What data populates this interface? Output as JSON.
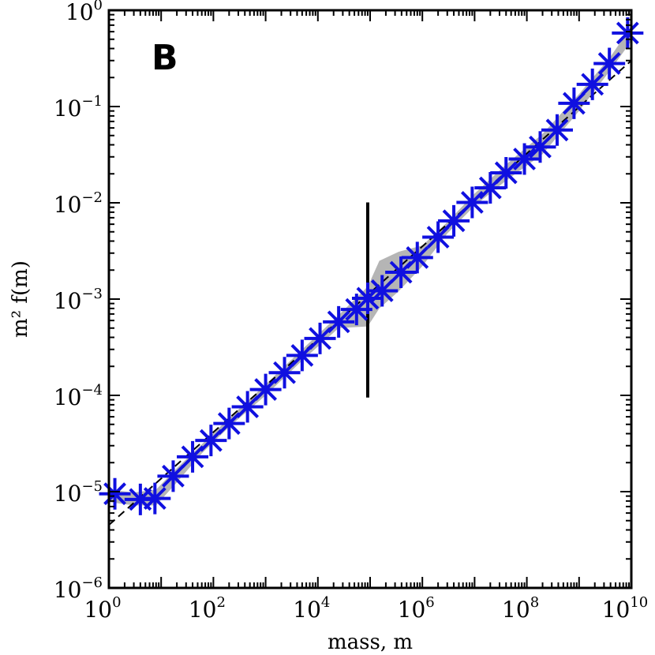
{
  "chart_data": {
    "type": "scatter",
    "panel_label": "B",
    "xlabel": "mass, m",
    "ylabel": "m² f(m)",
    "xscale": "log",
    "yscale": "log",
    "xlim": [
      1,
      10000000000
    ],
    "ylim": [
      1e-06,
      1
    ],
    "x_ticks": [
      {
        "base": "10",
        "exp": "0",
        "value": 1
      },
      {
        "base": "10",
        "exp": "2",
        "value": 100
      },
      {
        "base": "10",
        "exp": "4",
        "value": 10000
      },
      {
        "base": "10",
        "exp": "6",
        "value": 1000000
      },
      {
        "base": "10",
        "exp": "8",
        "value": 100000000
      },
      {
        "base": "10",
        "exp": "10",
        "value": 10000000000
      }
    ],
    "y_ticks": [
      {
        "base": "10",
        "exp": "−6",
        "value": 1e-06
      },
      {
        "base": "10",
        "exp": "−5",
        "value": 1e-05
      },
      {
        "base": "10",
        "exp": "−4",
        "value": 0.0001
      },
      {
        "base": "10",
        "exp": "−3",
        "value": 0.001
      },
      {
        "base": "10",
        "exp": "−2",
        "value": 0.01
      },
      {
        "base": "10",
        "exp": "−1",
        "value": 0.1
      },
      {
        "base": "10",
        "exp": "0",
        "value": 1
      }
    ],
    "series": [
      {
        "marker": "plus",
        "color": "#1010e0",
        "points": [
          {
            "x": 1.3,
            "y": 9.5e-06
          },
          {
            "x": 4.0,
            "y": 8.3e-06
          },
          {
            "x": 7.6,
            "y": 8.5e-06
          },
          {
            "x": 17,
            "y": 1.45e-05
          },
          {
            "x": 40,
            "y": 2.3e-05
          },
          {
            "x": 90,
            "y": 3.4e-05
          },
          {
            "x": 200,
            "y": 5.1e-05
          },
          {
            "x": 450,
            "y": 7.6e-05
          },
          {
            "x": 1000,
            "y": 0.000115
          },
          {
            "x": 2300,
            "y": 0.000172
          },
          {
            "x": 5000,
            "y": 0.00026
          },
          {
            "x": 11000,
            "y": 0.00039
          },
          {
            "x": 25000,
            "y": 0.00058
          },
          {
            "x": 55000,
            "y": 0.00078
          },
          {
            "x": 90000,
            "y": 0.00102
          },
          {
            "x": 170000,
            "y": 0.00122
          },
          {
            "x": 390000,
            "y": 0.0019
          },
          {
            "x": 800000,
            "y": 0.0027
          },
          {
            "x": 2000000,
            "y": 0.0044
          },
          {
            "x": 4000000,
            "y": 0.0065
          },
          {
            "x": 9000000,
            "y": 0.0101
          },
          {
            "x": 20000000,
            "y": 0.0143
          },
          {
            "x": 40000000,
            "y": 0.0205
          },
          {
            "x": 90000000,
            "y": 0.0285
          },
          {
            "x": 180000000,
            "y": 0.038
          },
          {
            "x": 380000000,
            "y": 0.057
          },
          {
            "x": 800000000,
            "y": 0.108
          },
          {
            "x": 1800000000,
            "y": 0.17
          },
          {
            "x": 3800000000,
            "y": 0.28
          },
          {
            "x": 8500000000,
            "y": 0.58
          }
        ]
      }
    ],
    "fit_line": {
      "style": "dashed",
      "color": "#000000",
      "points": [
        {
          "x": 1,
          "y": 4.5e-06
        },
        {
          "x": 10000000000,
          "y": 0.3
        }
      ]
    },
    "band": {
      "color": "#b5b5b5",
      "upper": [
        {
          "x": 1,
          "y": 1.05e-05
        },
        {
          "x": 3,
          "y": 9.8e-06
        },
        {
          "x": 8,
          "y": 1.05e-05
        },
        {
          "x": 20,
          "y": 1.75e-05
        },
        {
          "x": 60,
          "y": 3.1e-05
        },
        {
          "x": 200,
          "y": 5.8e-05
        },
        {
          "x": 1000,
          "y": 0.00013
        },
        {
          "x": 5000,
          "y": 0.0003
        },
        {
          "x": 25000,
          "y": 0.00068
        },
        {
          "x": 90000,
          "y": 0.00135
        },
        {
          "x": 150000,
          "y": 0.0025
        },
        {
          "x": 350000,
          "y": 0.0031
        },
        {
          "x": 1000000,
          "y": 0.0036
        },
        {
          "x": 3000000,
          "y": 0.0063
        },
        {
          "x": 10000000,
          "y": 0.0125
        },
        {
          "x": 40000000,
          "y": 0.025
        },
        {
          "x": 200000000,
          "y": 0.052
        },
        {
          "x": 1000000000,
          "y": 0.135
        },
        {
          "x": 4000000000,
          "y": 0.33
        },
        {
          "x": 10000000000,
          "y": 0.68
        }
      ],
      "lower": [
        {
          "x": 1,
          "y": 7.8e-06
        },
        {
          "x": 3,
          "y": 7.2e-06
        },
        {
          "x": 8,
          "y": 7.2e-06
        },
        {
          "x": 20,
          "y": 1.25e-05
        },
        {
          "x": 60,
          "y": 2.5e-05
        },
        {
          "x": 200,
          "y": 4.7e-05
        },
        {
          "x": 1000,
          "y": 0.0001
        },
        {
          "x": 5000,
          "y": 0.00023
        },
        {
          "x": 25000,
          "y": 0.0005
        },
        {
          "x": 90000,
          "y": 0.00052
        },
        {
          "x": 150000,
          "y": 0.0008
        },
        {
          "x": 350000,
          "y": 0.0012
        },
        {
          "x": 1000000,
          "y": 0.0022
        },
        {
          "x": 3000000,
          "y": 0.0048
        },
        {
          "x": 10000000,
          "y": 0.0093
        },
        {
          "x": 40000000,
          "y": 0.017
        },
        {
          "x": 200000000,
          "y": 0.032
        },
        {
          "x": 1000000000,
          "y": 0.09
        },
        {
          "x": 4000000000,
          "y": 0.24
        },
        {
          "x": 10000000000,
          "y": 0.48
        }
      ]
    },
    "vertical_marker": {
      "x": 90000,
      "y_bottom": 9.5e-05,
      "y_top": 0.0101,
      "color": "#000000"
    }
  }
}
